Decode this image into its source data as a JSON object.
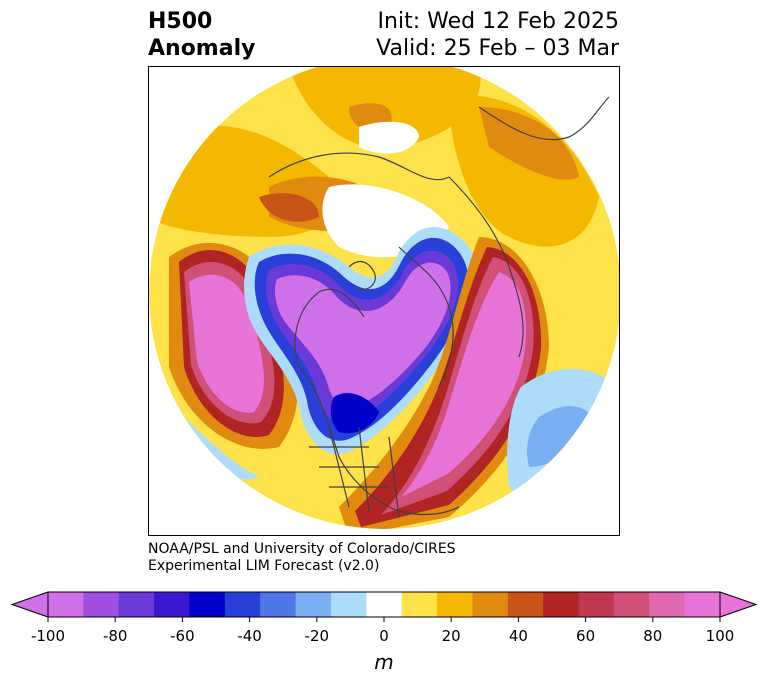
{
  "title": {
    "left_line1": "H500",
    "left_line2": "Anomaly",
    "right_line1": "Init: Wed 12 Feb 2025",
    "right_line2": "Valid: 25 Feb – 03 Mar"
  },
  "credit": {
    "line1": "NOAA/PSL and University of Colorado/CIRES",
    "line2": "Experimental LIM Forecast (v2.0)"
  },
  "colorbar": {
    "unit": "m",
    "tick_labels": [
      "-100",
      "-80",
      "-60",
      "-40",
      "-20",
      "0",
      "20",
      "40",
      "60",
      "80",
      "100"
    ],
    "levels": [
      -100,
      -90,
      -80,
      -70,
      -60,
      -50,
      -40,
      -30,
      -20,
      -10,
      10,
      20,
      30,
      40,
      50,
      60,
      70,
      80,
      90,
      100
    ],
    "colors": [
      "#d070e8",
      "#a050e0",
      "#6a3ad8",
      "#3a18d0",
      "#0000c8",
      "#2840d8",
      "#4e76e6",
      "#78aef2",
      "#acdcfa",
      "#ffffff",
      "#fde24a",
      "#f4b800",
      "#e08a10",
      "#c85418",
      "#b02424",
      "#c03850",
      "#d05078",
      "#e068b0",
      "#e874d8"
    ],
    "extend_low_color": "#d070e8",
    "extend_high_color": "#e874d8"
  }
}
